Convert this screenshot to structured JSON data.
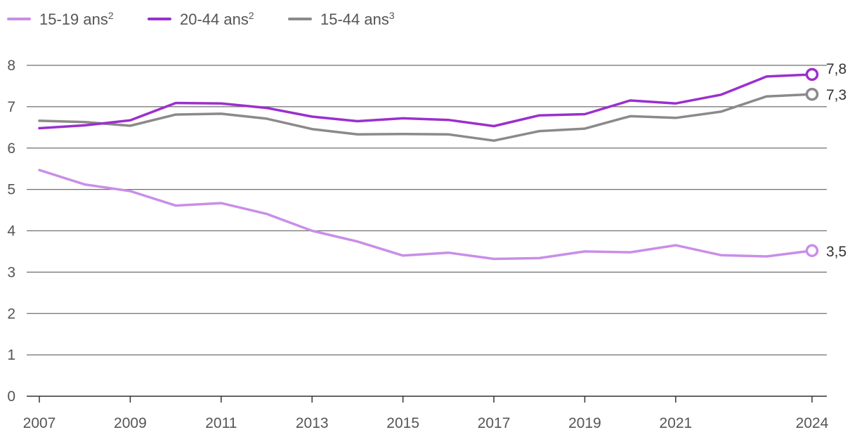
{
  "chart_data": {
    "type": "line",
    "title": "",
    "xlabel": "",
    "ylabel": "",
    "x": [
      2007,
      2008,
      2009,
      2010,
      2011,
      2012,
      2013,
      2014,
      2015,
      2016,
      2017,
      2018,
      2019,
      2020,
      2021,
      2022,
      2023,
      2024
    ],
    "x_ticks": [
      "2007",
      "2009",
      "2011",
      "2013",
      "2015",
      "2017",
      "2019",
      "2021",
      "2024"
    ],
    "y_ticks": [
      "0",
      "1",
      "2",
      "3",
      "4",
      "5",
      "6",
      "7",
      "8"
    ],
    "ylim": [
      0,
      8
    ],
    "grid": true,
    "legend_position": "top-left",
    "series": [
      {
        "name": "15-19 ans",
        "superscript": "2",
        "color": "#c98ee8",
        "values": [
          5.47,
          5.12,
          4.96,
          4.61,
          4.67,
          4.41,
          4.0,
          3.74,
          3.4,
          3.47,
          3.32,
          3.34,
          3.5,
          3.48,
          3.65,
          3.41,
          3.38,
          3.52
        ],
        "end_label": "3,5"
      },
      {
        "name": "20-44 ans",
        "superscript": "2",
        "color": "#9b2fce",
        "values": [
          6.48,
          6.55,
          6.67,
          7.09,
          7.08,
          6.97,
          6.76,
          6.65,
          6.72,
          6.68,
          6.53,
          6.79,
          6.82,
          7.15,
          7.08,
          7.29,
          7.73,
          7.78
        ],
        "end_label": "7,8"
      },
      {
        "name": "15-44 ans",
        "superscript": "3",
        "color": "#8a8a8a",
        "values": [
          6.66,
          6.63,
          6.54,
          6.81,
          6.83,
          6.71,
          6.46,
          6.33,
          6.34,
          6.33,
          6.18,
          6.41,
          6.47,
          6.77,
          6.73,
          6.88,
          7.25,
          7.3
        ],
        "end_label": "7,3"
      }
    ]
  }
}
